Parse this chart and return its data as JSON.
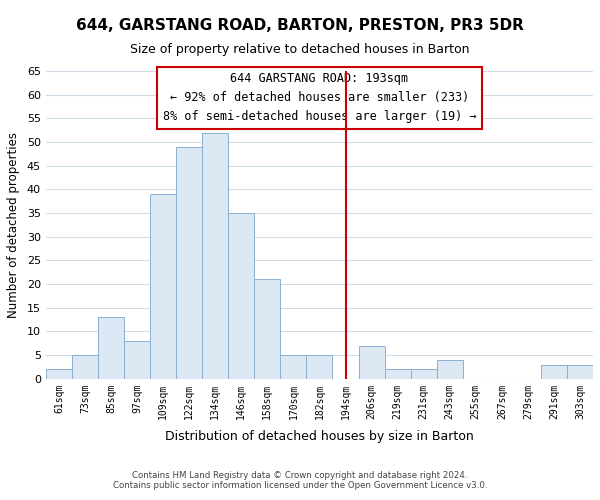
{
  "title": "644, GARSTANG ROAD, BARTON, PRESTON, PR3 5DR",
  "subtitle": "Size of property relative to detached houses in Barton",
  "xlabel": "Distribution of detached houses by size in Barton",
  "ylabel": "Number of detached properties",
  "bar_labels": [
    "61sqm",
    "73sqm",
    "85sqm",
    "97sqm",
    "109sqm",
    "122sqm",
    "134sqm",
    "146sqm",
    "158sqm",
    "170sqm",
    "182sqm",
    "194sqm",
    "206sqm",
    "219sqm",
    "231sqm",
    "243sqm",
    "255sqm",
    "267sqm",
    "279sqm",
    "291sqm",
    "303sqm"
  ],
  "bar_values": [
    2,
    5,
    13,
    8,
    39,
    49,
    52,
    35,
    21,
    5,
    5,
    0,
    7,
    2,
    2,
    4,
    0,
    0,
    0,
    3,
    3
  ],
  "bar_color": "#dde8f5",
  "bar_edge_color": "#8ab0d0",
  "ylim": [
    0,
    65
  ],
  "yticks": [
    0,
    5,
    10,
    15,
    20,
    25,
    30,
    35,
    40,
    45,
    50,
    55,
    60,
    65
  ],
  "vline_index": 11,
  "vline_color": "#cc0000",
  "annotation_title": "644 GARSTANG ROAD: 193sqm",
  "annotation_line1": "← 92% of detached houses are smaller (233)",
  "annotation_line2": "8% of semi-detached houses are larger (19) →",
  "footer1": "Contains HM Land Registry data © Crown copyright and database right 2024.",
  "footer2": "Contains public sector information licensed under the Open Government Licence v3.0.",
  "background_color": "#ffffff",
  "grid_color": "#d0dce8"
}
